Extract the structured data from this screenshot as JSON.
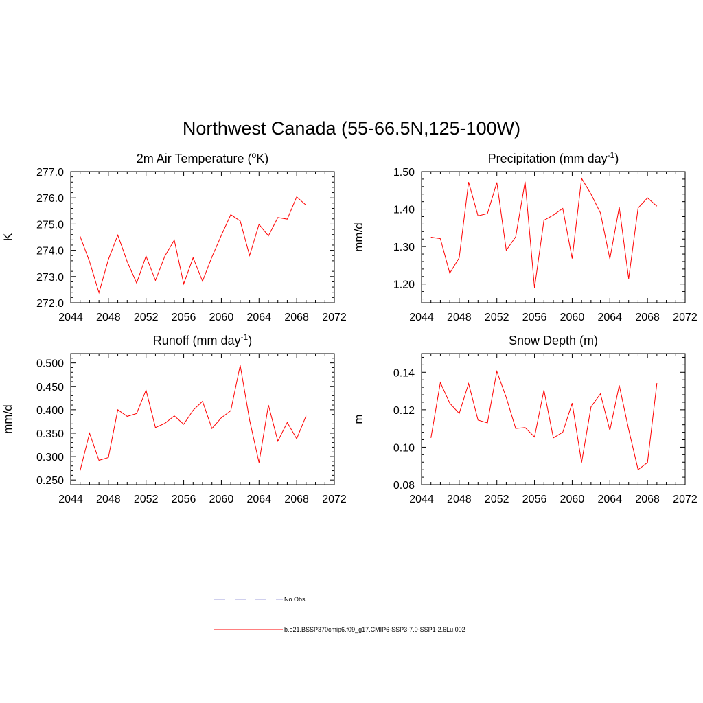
{
  "title": "Northwest Canada (55-66.5N,125-100W)",
  "legend": [
    {
      "label": "No Obs",
      "color": "#a0a0dc",
      "dash": true
    },
    {
      "label": "b.e21.BSSP370cmip6.f09_g17.CMIP6-SSP3-7.0-SSP1-2.6Lu.002",
      "color": "#ff0000",
      "dash": false
    }
  ],
  "chart_data": [
    {
      "type": "line",
      "title": "2m Air Temperature (",
      "title_super": "o",
      "title_tail": "K)",
      "ylabel": "K",
      "xlim": [
        2044,
        2072
      ],
      "ylim": [
        272.0,
        277.0
      ],
      "xticks": [
        "2044",
        "2048",
        "2052",
        "2056",
        "2060",
        "2064",
        "2068",
        "2072"
      ],
      "yticks": [
        "272.0",
        "273.0",
        "274.0",
        "275.0",
        "276.0",
        "277.0"
      ],
      "x": [
        2045,
        2046,
        2047,
        2048,
        2049,
        2050,
        2051,
        2052,
        2053,
        2054,
        2055,
        2056,
        2057,
        2058,
        2059,
        2060,
        2061,
        2062,
        2063,
        2064,
        2065,
        2066,
        2067,
        2068,
        2069
      ],
      "series": [
        {
          "color": "#ff0000",
          "values": [
            274.53,
            273.57,
            272.38,
            273.65,
            274.58,
            273.57,
            272.75,
            273.78,
            272.85,
            273.78,
            274.39,
            272.72,
            273.72,
            272.82,
            273.75,
            274.57,
            275.36,
            275.12,
            273.8,
            274.99,
            274.55,
            275.25,
            275.19,
            276.04,
            275.72
          ]
        }
      ]
    },
    {
      "type": "line",
      "title": "Precipitation (mm day",
      "title_super": "-1",
      "title_tail": ")",
      "ylabel": "mm/d",
      "xlim": [
        2044,
        2072
      ],
      "ylim": [
        1.15,
        1.5
      ],
      "xticks": [
        "2044",
        "2048",
        "2052",
        "2056",
        "2060",
        "2064",
        "2068",
        "2072"
      ],
      "yticks": [
        "1.20",
        "1.30",
        "1.40",
        "1.50"
      ],
      "x": [
        2045,
        2046,
        2047,
        2048,
        2049,
        2050,
        2051,
        2052,
        2053,
        2054,
        2055,
        2056,
        2057,
        2058,
        2059,
        2060,
        2061,
        2062,
        2063,
        2064,
        2065,
        2066,
        2067,
        2068,
        2069
      ],
      "series": [
        {
          "color": "#ff0000",
          "values": [
            1.325,
            1.321,
            1.229,
            1.27,
            1.472,
            1.382,
            1.388,
            1.471,
            1.29,
            1.326,
            1.473,
            1.19,
            1.37,
            1.384,
            1.402,
            1.268,
            1.482,
            1.44,
            1.39,
            1.267,
            1.405,
            1.214,
            1.403,
            1.43,
            1.408
          ]
        }
      ]
    },
    {
      "type": "line",
      "title": "Runoff (mm day",
      "title_super": "-1",
      "title_tail": ")",
      "ylabel": "mm/d",
      "xlim": [
        2044,
        2072
      ],
      "ylim": [
        0.24,
        0.52
      ],
      "xticks": [
        "2044",
        "2048",
        "2052",
        "2056",
        "2060",
        "2064",
        "2068",
        "2072"
      ],
      "yticks": [
        "0.250",
        "0.300",
        "0.350",
        "0.400",
        "0.450",
        "0.500"
      ],
      "x": [
        2045,
        2046,
        2047,
        2048,
        2049,
        2050,
        2051,
        2052,
        2053,
        2054,
        2055,
        2056,
        2057,
        2058,
        2059,
        2060,
        2061,
        2062,
        2063,
        2064,
        2065,
        2066,
        2067,
        2068,
        2069
      ],
      "series": [
        {
          "color": "#ff0000",
          "values": [
            0.27,
            0.35,
            0.292,
            0.298,
            0.4,
            0.386,
            0.392,
            0.442,
            0.362,
            0.371,
            0.387,
            0.369,
            0.399,
            0.418,
            0.36,
            0.383,
            0.398,
            0.495,
            0.378,
            0.287,
            0.41,
            0.333,
            0.373,
            0.338,
            0.387
          ]
        }
      ]
    },
    {
      "type": "line",
      "title": "Snow Depth (m)",
      "title_super": "",
      "title_tail": "",
      "ylabel": "m",
      "xlim": [
        2044,
        2072
      ],
      "ylim": [
        0.08,
        0.15
      ],
      "xticks": [
        "2044",
        "2048",
        "2052",
        "2056",
        "2060",
        "2064",
        "2068",
        "2072"
      ],
      "yticks": [
        "0.08",
        "0.10",
        "0.12",
        "0.14"
      ],
      "x": [
        2045,
        2046,
        2047,
        2048,
        2049,
        2050,
        2051,
        2052,
        2053,
        2054,
        2055,
        2056,
        2057,
        2058,
        2059,
        2060,
        2061,
        2062,
        2063,
        2064,
        2065,
        2066,
        2067,
        2068,
        2069
      ],
      "series": [
        {
          "color": "#ff0000",
          "values": [
            0.105,
            0.1345,
            0.1235,
            0.118,
            0.134,
            0.1145,
            0.113,
            0.1405,
            0.1265,
            0.11,
            0.1105,
            0.1055,
            0.1305,
            0.105,
            0.108,
            0.1235,
            0.0918,
            0.1215,
            0.1285,
            0.109,
            0.133,
            0.1095,
            0.088,
            0.0918,
            0.1342
          ]
        }
      ]
    }
  ]
}
